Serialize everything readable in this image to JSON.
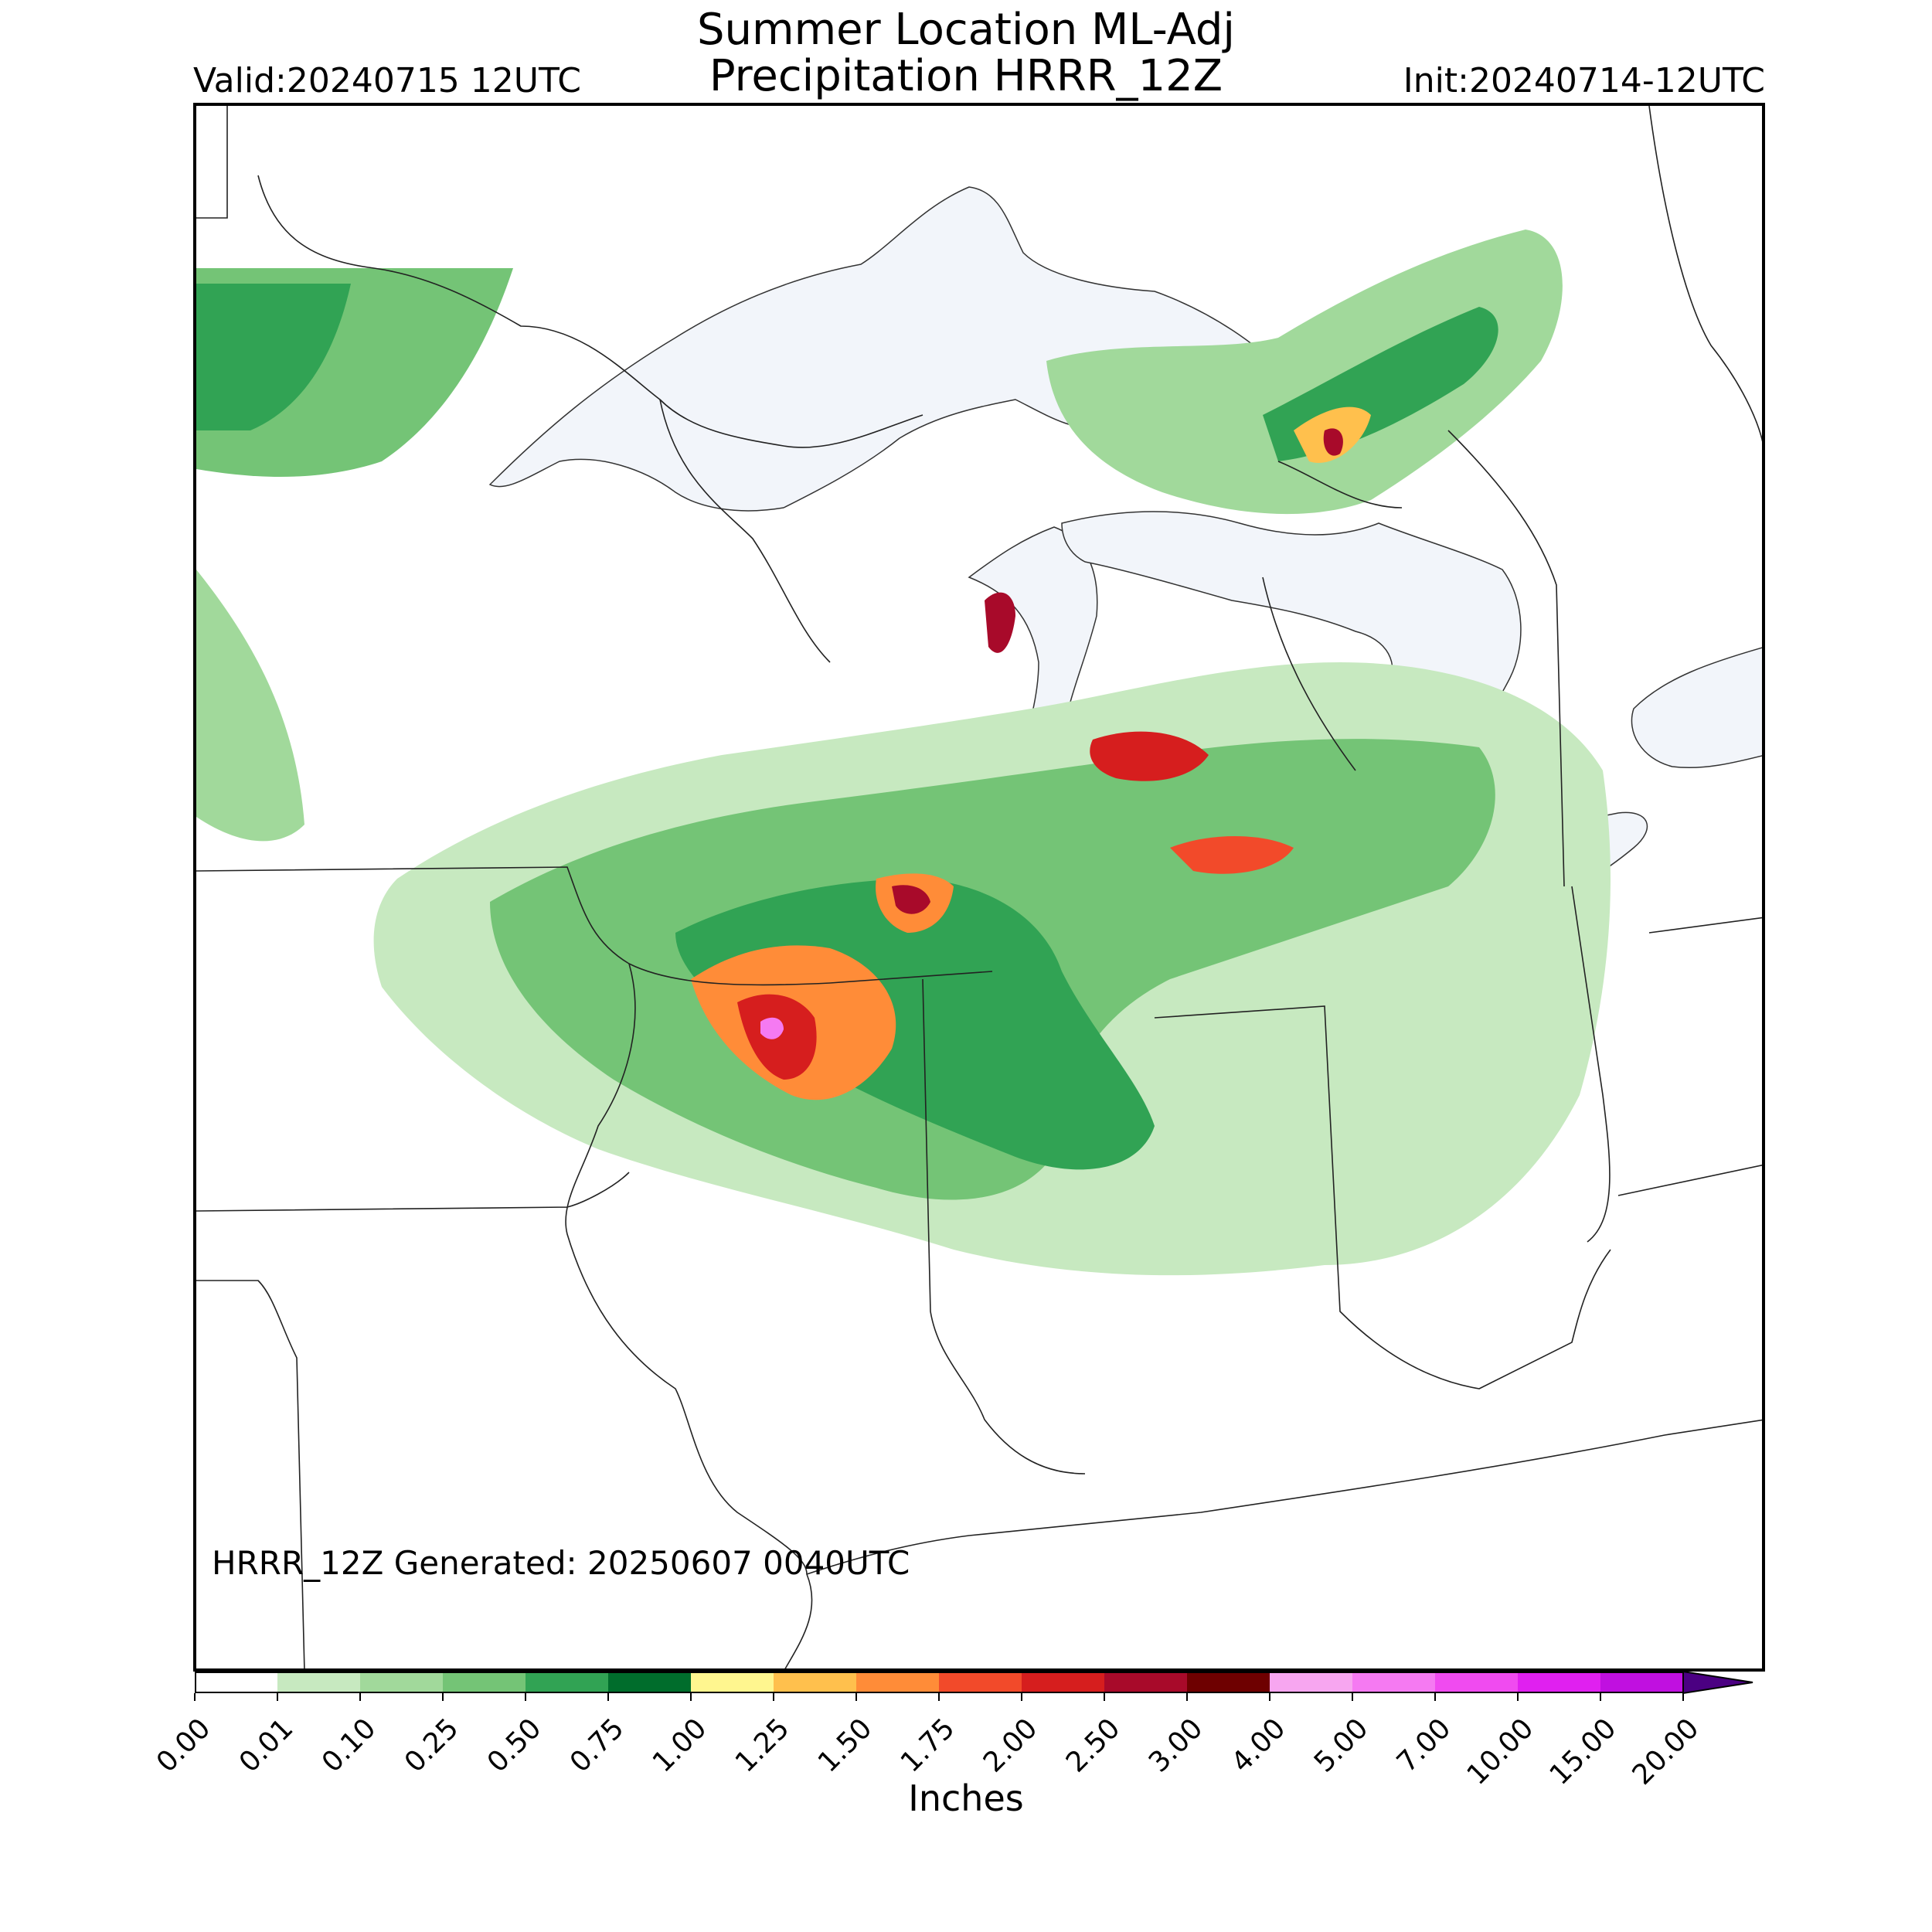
{
  "title": {
    "line1": "Summer Location ML-Adj",
    "line2": "Precipitation HRRR_12Z"
  },
  "valid": "Valid:20240715 12UTC",
  "init": "Init:20240714-12UTC",
  "generated": "HRRR_12Z Generated: 20250607 0040UTC",
  "colorbar": {
    "label": "Inches",
    "extend": "max",
    "levels": [
      "0.00",
      "0.01",
      "0.10",
      "0.25",
      "0.50",
      "0.75",
      "1.00",
      "1.25",
      "1.50",
      "1.75",
      "2.00",
      "2.50",
      "3.00",
      "4.00",
      "5.00",
      "7.00",
      "10.00",
      "15.00",
      "20.00"
    ],
    "colors": [
      "#ffffff",
      "#c7e9c0",
      "#a1d99b",
      "#74c476",
      "#31a354",
      "#006d2c",
      "#fff68f",
      "#ffc04d",
      "#ff8c38",
      "#f24a2a",
      "#d61e1e",
      "#a80a2a",
      "#6e0000",
      "#f7a6f0",
      "#f57af2",
      "#f04bf0",
      "#e020f0",
      "#c010e0",
      "#8000c8"
    ],
    "extend_color": "#4b0082"
  },
  "map": {
    "water_color": "#f2f5fa",
    "border_color": "#222222",
    "features": [
      "Lake Superior",
      "Lake Michigan",
      "Lake Huron",
      "Lake Erie",
      "Lake Ontario",
      "state borders",
      "country border"
    ]
  }
}
